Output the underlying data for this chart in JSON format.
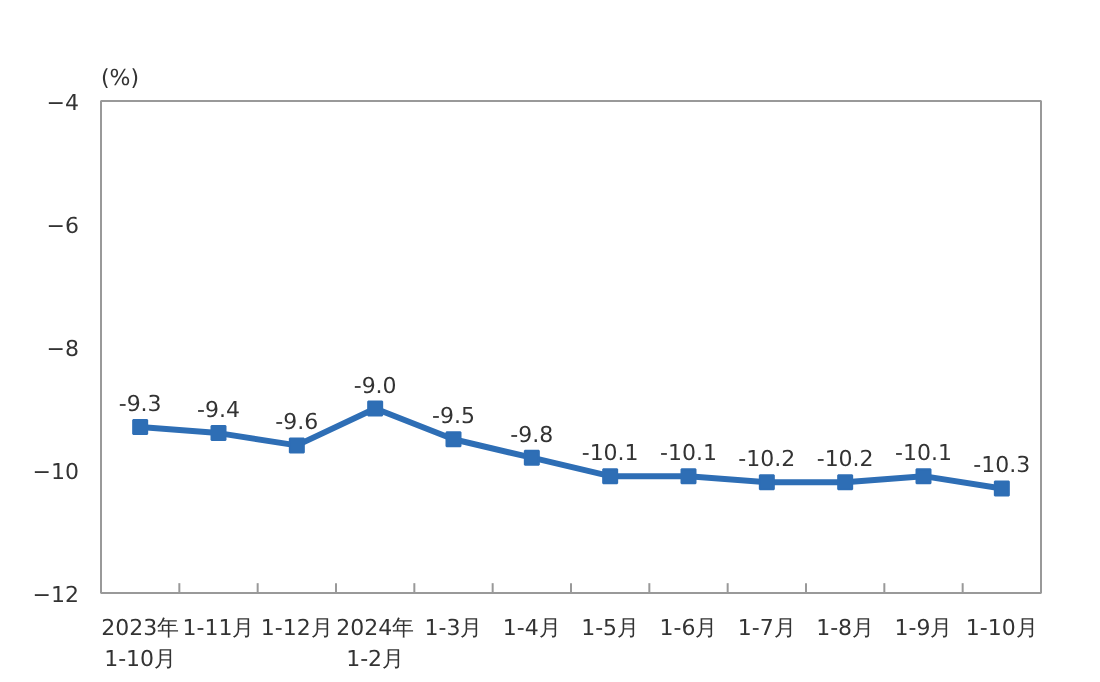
{
  "chart_data": {
    "type": "line",
    "ylabel": "(%)",
    "categories": [
      "2023年\n1-10月",
      "1-11月",
      "1-12月",
      "2024年\n1-2月",
      "1-3月",
      "1-4月",
      "1-5月",
      "1-6月",
      "1-7月",
      "1-8月",
      "1-9月",
      "1-10月"
    ],
    "series": [
      {
        "color": "#2e6eb5",
        "values": [
          -9.3,
          -9.4,
          -9.6,
          -9.0,
          -9.5,
          -9.8,
          -10.1,
          -10.1,
          -10.2,
          -10.2,
          -10.1,
          -10.3
        ]
      }
    ],
    "value_labels": [
      "-9.3",
      "-9.4",
      "-9.6",
      "-9.0",
      "-9.5",
      "-9.8",
      "-10.1",
      "-10.1",
      "-10.2",
      "-10.2",
      "-10.1",
      "-10.3"
    ],
    "ylim": [
      -12,
      -4
    ],
    "yticks": [
      -12,
      -10,
      -8,
      -6,
      -4
    ],
    "marker": "square",
    "grid": false
  }
}
